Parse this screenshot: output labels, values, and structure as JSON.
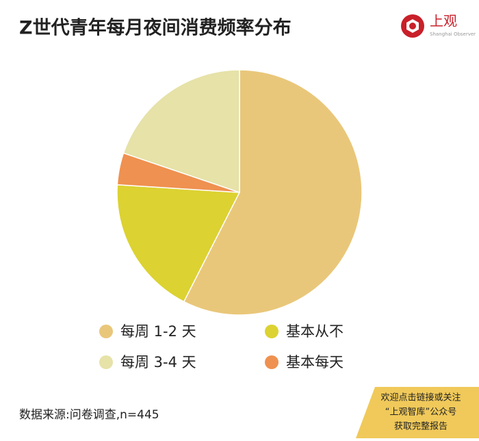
{
  "chart_data": {
    "type": "pie",
    "title": "Z世代青年每月夜间消费频率分布",
    "categories": [
      "每周 1-2 天",
      "基本从不",
      "基本每天",
      "每周 3-4 天"
    ],
    "values": [
      57.5,
      18.5,
      4.2,
      19.8
    ],
    "colors": [
      "#e9c77a",
      "#dcd232",
      "#ef9150",
      "#e6e2a8"
    ]
  },
  "logo": {
    "name": "上观",
    "subtitle": "Shanghai Observer"
  },
  "source": "数据来源:问卷调查,n=445",
  "promo": [
    "欢迎点击链接或关注",
    "“上观智库”公众号",
    "获取完整报告"
  ]
}
